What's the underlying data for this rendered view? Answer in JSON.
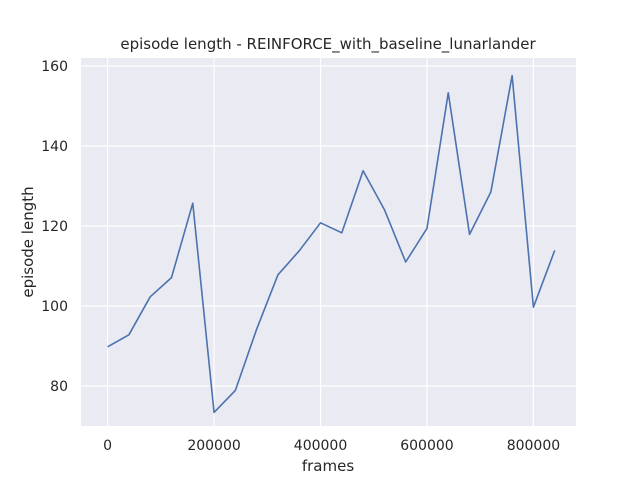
{
  "chart_data": {
    "type": "line",
    "title": "episode length - REINFORCE_with_baseline_lunarlander",
    "xlabel": "frames",
    "ylabel": "episode length",
    "xlim": [
      -50000,
      880000
    ],
    "ylim": [
      70,
      162
    ],
    "xticks": [
      0,
      200000,
      400000,
      600000,
      800000
    ],
    "yticks": [
      80,
      100,
      120,
      140,
      160
    ],
    "grid": true,
    "background": "#eaeaf2",
    "grid_color": "#ffffff",
    "line_color": "#4c72b0",
    "series": [
      {
        "x": [
          0,
          40000,
          80000,
          120000,
          160000,
          200000,
          240000,
          280000,
          320000,
          360000,
          400000,
          440000,
          480000,
          520000,
          560000,
          600000,
          640000,
          680000,
          720000,
          760000,
          800000,
          840000
        ],
        "values": [
          89.8,
          92.8,
          102.3,
          107.1,
          125.7,
          73.4,
          78.9,
          94.2,
          107.8,
          113.8,
          120.8,
          118.3,
          133.8,
          124.1,
          111.0,
          119.4,
          153.3,
          117.9,
          128.5,
          157.6,
          99.7,
          113.9
        ]
      }
    ]
  }
}
